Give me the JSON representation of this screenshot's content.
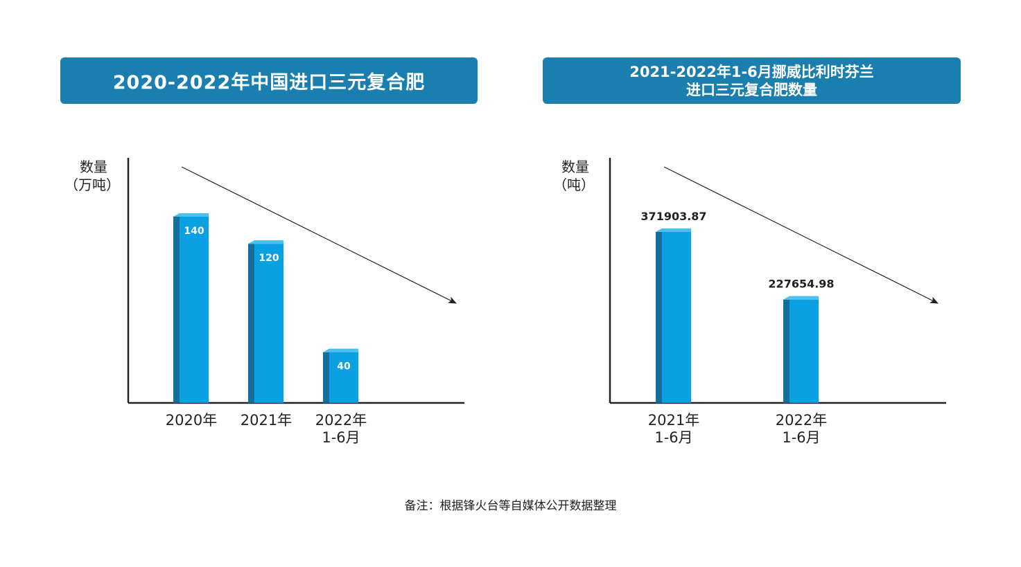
{
  "charts_titles": {
    "left": "2020-2022年中国进口三元复合肥",
    "right_line1": "2021-2022年1-6月挪威比利时芬兰",
    "right_line2": "进口三元复合肥数量"
  },
  "note": "备注：根据锋火台等自媒体公开数据整理",
  "colors": {
    "title_bg": "#1a7fae",
    "bar_front": "#0aa0e2",
    "bar_side": "#146f9c",
    "bar_top": "#4cc0ef",
    "axis": "#222222"
  },
  "chart_data": [
    {
      "type": "bar",
      "title": "2020-2022年中国进口三元复合肥",
      "ylabel_line1": "数量",
      "ylabel_line2": "（万吨）",
      "categories": [
        {
          "line1": "2020年",
          "line2": ""
        },
        {
          "line1": "2021年",
          "line2": ""
        },
        {
          "line1": "2022年",
          "line2": "1-6月"
        }
      ],
      "values": [
        140,
        120,
        40
      ],
      "value_labels": [
        "140",
        "120",
        "40"
      ],
      "label_position": "inside-top",
      "ylim": [
        0,
        140
      ],
      "trend_arrow": "decreasing"
    },
    {
      "type": "bar",
      "title": "2021-2022年1-6月挪威比利时芬兰进口三元复合肥数量",
      "ylabel_line1": "数量",
      "ylabel_line2": "（吨）",
      "categories": [
        {
          "line1": "2021年",
          "line2": "1-6月"
        },
        {
          "line1": "2022年",
          "line2": "1-6月"
        }
      ],
      "values": [
        371903.87,
        227654.98
      ],
      "value_labels": [
        "371903.87",
        "227654.98"
      ],
      "label_position": "above",
      "ylim": [
        0,
        371903.87
      ],
      "trend_arrow": "decreasing"
    }
  ]
}
